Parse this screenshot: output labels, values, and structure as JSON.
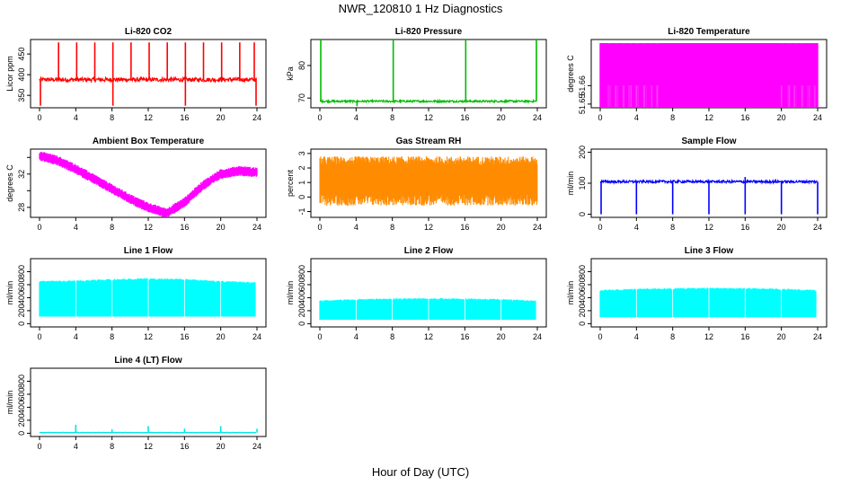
{
  "page": {
    "title": "NWR_120810  1 Hz Diagnostics",
    "xlabel": "Hour of Day (UTC)"
  },
  "chart_data": [
    {
      "type": "line",
      "title": "Li-820 CO2",
      "ylabel": "Licor ppm",
      "xlim": [
        0,
        24
      ],
      "ylim": [
        320,
        485
      ],
      "xticks": [
        0,
        4,
        8,
        12,
        16,
        20,
        24
      ],
      "yticks": [
        350,
        400,
        450
      ],
      "color": "#ff0000",
      "baseline": 388,
      "band": 5,
      "spikes_up": [
        2.1,
        4.1,
        6.1,
        8.1,
        10.1,
        12.1,
        14.1,
        16.1,
        18.1,
        20.1,
        22.1,
        23.7
      ],
      "spike_top": 478,
      "dips": [
        0.1,
        8.1,
        16.1,
        23.9
      ],
      "dip_bottom": 325
    },
    {
      "type": "line",
      "title": "Li-820 Pressure",
      "ylabel": "kPa",
      "xlim": [
        0,
        24
      ],
      "ylim": [
        67,
        88
      ],
      "xticks": [
        0,
        4,
        8,
        12,
        16,
        20,
        24
      ],
      "yticks": [
        70,
        80
      ],
      "color": "#00bb00",
      "baseline": 69,
      "band": 0.3,
      "spikes_up": [
        0.1,
        8.1,
        16.1,
        23.9
      ],
      "spike_top": 88,
      "dips": [
        4.1
      ],
      "dip_bottom": 67.5
    },
    {
      "type": "area",
      "title": "Li-820 Temperature",
      "ylabel": "degrees C",
      "xlim": [
        0,
        24
      ],
      "ylim": [
        51.648,
        51.685
      ],
      "xticks": [
        0,
        4,
        8,
        12,
        16,
        20,
        24
      ],
      "yticks": [
        51.65,
        51.66
      ],
      "ytick_labels": [
        "51.65",
        "51.66"
      ],
      "color": "#ff00ff",
      "low": 51.648,
      "high": 51.683,
      "bar_from": 51.66,
      "gaps_start": [
        0.8,
        1.6,
        2.4,
        3.1,
        3.9,
        4.7,
        5.5,
        6.1,
        19.9,
        20.6,
        21.3,
        22.1,
        22.8,
        23.5
      ],
      "gaps_end": [
        1.2,
        2.0,
        2.8,
        3.5,
        4.3,
        5.1,
        5.8,
        6.5,
        20.2,
        21.0,
        21.7,
        22.5,
        23.2,
        23.8
      ]
    },
    {
      "type": "area",
      "title": "Ambient Box Temperature",
      "ylabel": "degrees C",
      "xlim": [
        0,
        24
      ],
      "ylim": [
        26.8,
        35
      ],
      "xticks": [
        0,
        4,
        8,
        12,
        16,
        20,
        24
      ],
      "yticks": [
        28,
        30,
        32,
        34
      ],
      "ytick_labels": [
        "28",
        "",
        "32",
        ""
      ],
      "color": "#ff00ff",
      "curve_x": [
        0,
        2,
        4,
        6,
        8,
        10,
        12,
        14,
        16,
        18,
        20,
        22,
        24
      ],
      "curve_y": [
        34.2,
        33.6,
        32.6,
        31.4,
        30.2,
        29.0,
        28.0,
        27.3,
        28.6,
        30.6,
        32.0,
        32.4,
        32.2
      ],
      "band": 0.5
    },
    {
      "type": "area",
      "title": "Gas Stream RH",
      "ylabel": "percent",
      "xlim": [
        0,
        24
      ],
      "ylim": [
        -1.4,
        3.3
      ],
      "xticks": [
        0,
        4,
        8,
        12,
        16,
        20,
        24
      ],
      "yticks": [
        -1,
        0,
        1,
        2,
        3
      ],
      "color": "#ff8c00",
      "low": -0.6,
      "high": 2.8,
      "band_low": 0.2,
      "band_high": 2.2
    },
    {
      "type": "line",
      "title": "Sample Flow",
      "ylabel": "ml/min",
      "xlim": [
        0,
        24
      ],
      "ylim": [
        -10,
        210
      ],
      "xticks": [
        0,
        4,
        8,
        12,
        16,
        20,
        24
      ],
      "yticks": [
        0,
        100,
        200
      ],
      "color": "#0000ff",
      "baseline": 105,
      "band": 4,
      "dips": [
        0.1,
        4.0,
        8.0,
        12.0,
        16.0,
        20.0,
        24.0
      ],
      "dip_bottom": 0,
      "spikes_up": [
        16.0
      ],
      "spike_top": 120
    },
    {
      "type": "area",
      "title": "Line 1 Flow",
      "ylabel": "ml/min",
      "xlim": [
        0,
        24
      ],
      "ylim": [
        -50,
        1000
      ],
      "xticks": [
        0,
        4,
        8,
        12,
        16,
        20,
        24
      ],
      "yticks": [
        0,
        200,
        400,
        600,
        800
      ],
      "color": "#00ffff",
      "low": 110,
      "high_x": [
        0,
        4,
        8,
        12,
        16,
        20,
        24
      ],
      "high_y": [
        660,
        665,
        690,
        700,
        690,
        660,
        640
      ],
      "gaps": [
        4.0,
        8.0,
        12.0,
        16.0,
        20.0,
        23.9
      ]
    },
    {
      "type": "area",
      "title": "Line 2 Flow",
      "ylabel": "ml/min",
      "xlim": [
        0,
        24
      ],
      "ylim": [
        -50,
        1000
      ],
      "xticks": [
        0,
        4,
        8,
        12,
        16,
        20,
        24
      ],
      "yticks": [
        0,
        200,
        400,
        600,
        800
      ],
      "color": "#00ffff",
      "low": 60,
      "high_x": [
        0,
        4,
        8,
        12,
        16,
        20,
        24
      ],
      "high_y": [
        360,
        380,
        390,
        395,
        390,
        380,
        360
      ],
      "gaps": [
        4.0,
        8.0,
        12.0,
        16.0,
        20.0,
        23.9
      ]
    },
    {
      "type": "area",
      "title": "Line 3 Flow",
      "ylabel": "ml/min",
      "xlim": [
        0,
        24
      ],
      "ylim": [
        -50,
        1000
      ],
      "xticks": [
        0,
        4,
        8,
        12,
        16,
        20,
        24
      ],
      "yticks": [
        0,
        200,
        400,
        600,
        800
      ],
      "color": "#00ffff",
      "low": 100,
      "high_x": [
        0,
        4,
        8,
        12,
        16,
        20,
        24
      ],
      "high_y": [
        520,
        540,
        550,
        555,
        550,
        540,
        520
      ],
      "gaps": [
        4.0,
        8.0,
        12.0,
        16.0,
        20.0,
        23.9
      ]
    },
    {
      "type": "line",
      "title": "Line 4 (LT) Flow",
      "ylabel": "ml/min",
      "xlim": [
        0,
        24
      ],
      "ylim": [
        -50,
        1000
      ],
      "xticks": [
        0,
        4,
        8,
        12,
        16,
        20,
        24
      ],
      "yticks": [
        0,
        200,
        400,
        600,
        800
      ],
      "color": "#00e6e6",
      "baseline": 10,
      "band": 4,
      "spikes_up": [
        4.0,
        8.0,
        12.0,
        16.0,
        20.0,
        24.0
      ],
      "spike_heights": [
        130,
        60,
        110,
        70,
        110,
        70
      ]
    }
  ]
}
